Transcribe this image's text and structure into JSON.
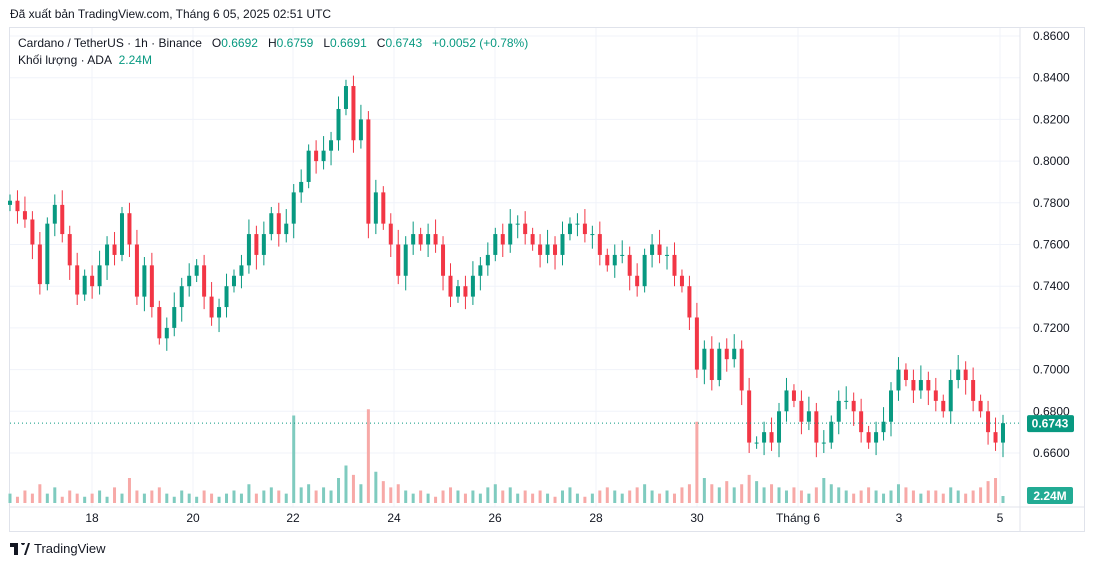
{
  "published": "Đã xuất bản TradingView.com, Tháng 6 05, 2025 02:51 UTC",
  "legend": {
    "symbol": "Cardano / TetherUS · 1h · Binance",
    "o_label": "O",
    "o": "0.6692",
    "h_label": "H",
    "h": "0.6759",
    "l_label": "L",
    "l": "0.6691",
    "c_label": "C",
    "c": "0.6743",
    "change": "+0.0052 (+0.78%)",
    "volume_label": "Khối lượng · ADA",
    "volume": "2.24M"
  },
  "logo": "TradingView",
  "colors": {
    "up": "#089981",
    "down": "#f23645",
    "up_vol": "#7fcbbf",
    "down_vol": "#f7a9a7",
    "grid": "#f0f3fa"
  },
  "chart_data": {
    "type": "candlestick",
    "title": "Cardano / TetherUS · 1h · Binance",
    "grid": true,
    "ylim": [
      0.6473,
      0.8632
    ],
    "y_ticks": [
      "0.8600",
      "0.8400",
      "0.8200",
      "0.8000",
      "0.7800",
      "0.7600",
      "0.7400",
      "0.7200",
      "0.7000",
      "0.6800",
      "0.6600"
    ],
    "x_ticks": [
      "18",
      "20",
      "22",
      "24",
      "26",
      "28",
      "30",
      "Tháng 6",
      "3",
      "5"
    ],
    "x_range": [
      "2025-05-16 08:00",
      "2025-06-05 02:00"
    ],
    "last_price": "0.6743",
    "last_volume": "2.24M",
    "first_open": 0.779,
    "closes": [
      0.781,
      0.776,
      0.772,
      0.76,
      0.741,
      0.77,
      0.779,
      0.765,
      0.75,
      0.736,
      0.745,
      0.74,
      0.75,
      0.76,
      0.755,
      0.775,
      0.76,
      0.735,
      0.75,
      0.73,
      0.715,
      0.72,
      0.73,
      0.74,
      0.745,
      0.75,
      0.735,
      0.725,
      0.73,
      0.74,
      0.745,
      0.75,
      0.765,
      0.755,
      0.765,
      0.775,
      0.765,
      0.77,
      0.785,
      0.79,
      0.805,
      0.8,
      0.805,
      0.81,
      0.825,
      0.836,
      0.81,
      0.82,
      0.77,
      0.785,
      0.77,
      0.76,
      0.745,
      0.76,
      0.765,
      0.76,
      0.765,
      0.76,
      0.745,
      0.735,
      0.74,
      0.735,
      0.745,
      0.75,
      0.755,
      0.765,
      0.76,
      0.77,
      0.77,
      0.765,
      0.76,
      0.755,
      0.76,
      0.755,
      0.765,
      0.77,
      0.77,
      0.765,
      0.765,
      0.755,
      0.75,
      0.755,
      0.755,
      0.745,
      0.74,
      0.755,
      0.76,
      0.755,
      0.755,
      0.745,
      0.74,
      0.725,
      0.7,
      0.71,
      0.695,
      0.71,
      0.705,
      0.71,
      0.69,
      0.665,
      0.665,
      0.67,
      0.665,
      0.68,
      0.69,
      0.685,
      0.675,
      0.68,
      0.665,
      0.665,
      0.675,
      0.685,
      0.685,
      0.68,
      0.67,
      0.665,
      0.67,
      0.675,
      0.69,
      0.7,
      0.695,
      0.69,
      0.695,
      0.69,
      0.685,
      0.68,
      0.695,
      0.7,
      0.695,
      0.685,
      0.68,
      0.67,
      0.665,
      0.6743
    ],
    "volume_unit": "M ADA",
    "volumes": [
      3,
      2,
      4,
      3,
      6,
      3,
      5,
      2,
      4,
      3,
      2,
      3,
      4,
      2,
      5,
      3,
      8,
      4,
      3,
      4,
      5,
      3,
      2,
      4,
      3,
      2,
      4,
      3,
      2,
      3,
      4,
      3,
      6,
      3,
      4,
      5,
      4,
      3,
      28,
      5,
      6,
      4,
      5,
      4,
      8,
      12,
      9,
      6,
      30,
      10,
      7,
      5,
      6,
      4,
      3,
      4,
      3,
      2,
      4,
      5,
      4,
      3,
      4,
      3,
      5,
      6,
      4,
      5,
      3,
      4,
      3,
      4,
      3,
      2,
      4,
      5,
      3,
      2,
      3,
      4,
      5,
      4,
      3,
      4,
      5,
      6,
      4,
      3,
      4,
      3,
      5,
      6,
      26,
      8,
      6,
      5,
      7,
      5,
      6,
      9,
      7,
      5,
      6,
      5,
      4,
      5,
      4,
      3,
      5,
      8,
      6,
      5,
      4,
      3,
      4,
      5,
      4,
      3,
      4,
      6,
      5,
      4,
      3,
      4,
      4,
      3,
      5,
      4,
      3,
      4,
      5,
      7,
      8,
      2.24
    ]
  }
}
